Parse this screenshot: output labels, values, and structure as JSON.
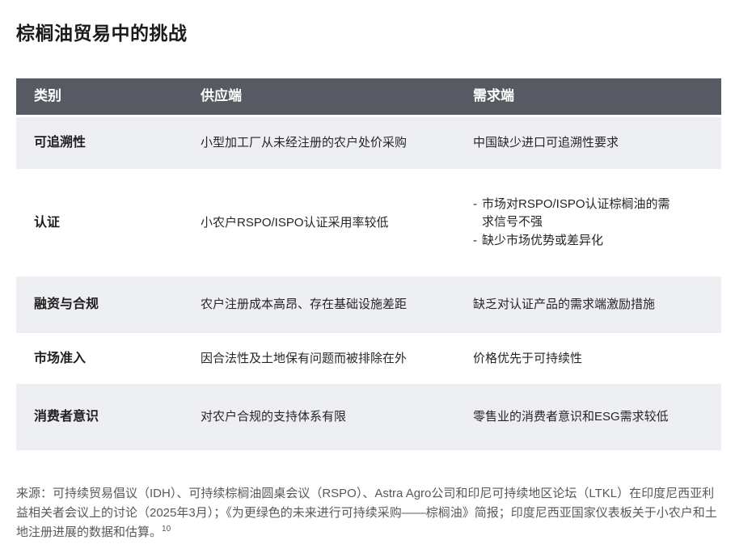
{
  "page": {
    "title": "棕榈油贸易中的挑战",
    "source_note": "来源：可持续贸易倡议（IDH）、可持续棕榈油圆桌会议（RSPO）、Astra Agro公司和印尼可持续地区论坛（LTKL）在印度尼西亚利益相关者会议上的讨论（2025年3月）；《为更绿色的未来进行可持续采购——棕榈油》简报；印度尼西亚国家仪表板关于小农户和土地注册进展的数据和估算。",
    "source_superscript": "10"
  },
  "table": {
    "bullet_char": "-",
    "headers": [
      "类别",
      "供应端",
      "需求端"
    ],
    "rows": [
      {
        "category": "可追溯性",
        "supply": "小型加工厂从未经注册的农户处价采购",
        "demand": "中国缺少进口可追溯性要求"
      },
      {
        "category": "认证",
        "supply": "小农户RSPO/ISPO认证采用率较低",
        "demand_bullets": [
          "市场对RSPO/ISPO认证棕榈油的需求信号不强",
          "缺少市场优势或差异化"
        ]
      },
      {
        "category": "融资与合规",
        "supply": "农户注册成本高昂、存在基础设施差距",
        "demand": "缺乏对认证产品的需求端激励措施"
      },
      {
        "category": "市场准入",
        "supply": "因合法性及土地保有问题而被排除在外",
        "demand": "价格优先于可持续性"
      },
      {
        "category": "消费者意识",
        "supply": "对农户合规的支持体系有限",
        "demand": "零售业的消费者意识和ESG需求较低"
      }
    ]
  },
  "colors": {
    "header_bg": "#575a63",
    "header_text": "#ffffff",
    "row_alt_bg": "#edeff2",
    "title_text": "#1b1b1b",
    "body_text": "#262626",
    "source_text": "#595959"
  }
}
